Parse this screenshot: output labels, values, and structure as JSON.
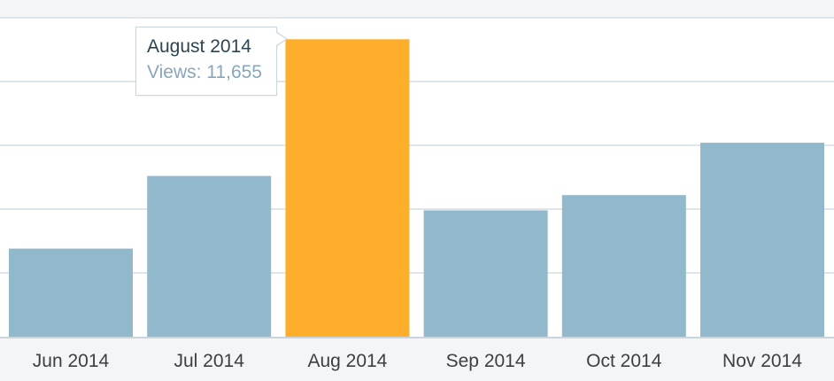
{
  "chart_data": {
    "type": "bar",
    "categories": [
      "Jun 2014",
      "Jul 2014",
      "Aug 2014",
      "Sep 2014",
      "Oct 2014",
      "Nov 2014"
    ],
    "values": [
      3450,
      6300,
      11655,
      4950,
      5550,
      7600
    ],
    "ylim": [
      0,
      12500
    ],
    "y_gridlines": [
      0,
      2500,
      5000,
      7500,
      10000,
      12500
    ],
    "grid": true,
    "highlighted_category": "Aug 2014",
    "colors": {
      "bar": "#92b9cb",
      "bar_highlight": "#ffae2b",
      "gridline": "#dee6eb",
      "axis_line": "#c9d4dc"
    },
    "tooltip": {
      "title": "August 2014",
      "row_label": "Views",
      "row_value": "11,655",
      "row_text": "Views: 11,655"
    }
  }
}
